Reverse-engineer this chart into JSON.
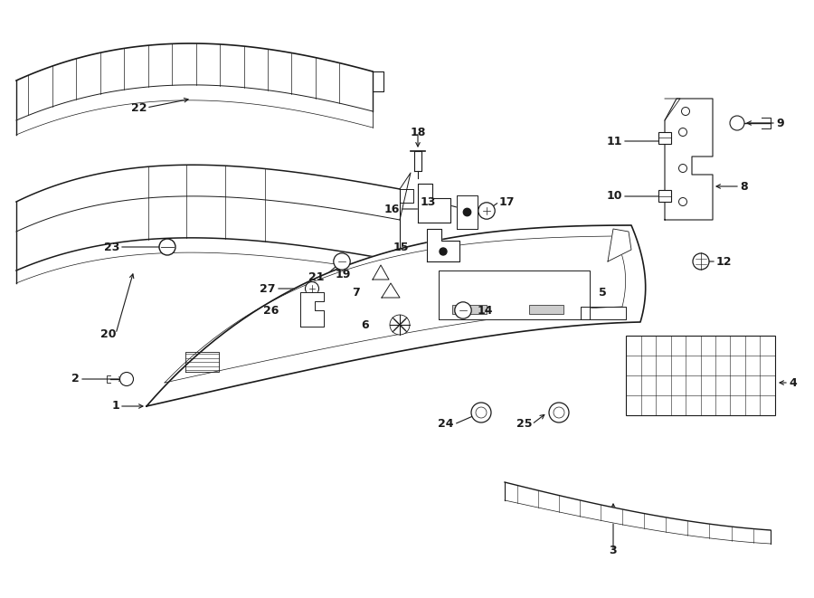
{
  "bg_color": "#ffffff",
  "lc": "#1a1a1a",
  "fig_w": 9.0,
  "fig_h": 6.61,
  "dpi": 100,
  "labels": {
    "1": [
      1.52,
      2.12,
      "left",
      0.0,
      -0.18
    ],
    "2": [
      1.05,
      2.42,
      "left",
      0.12,
      0.0
    ],
    "3": [
      6.78,
      0.52,
      "center",
      0.0,
      -0.18
    ],
    "4": [
      8.62,
      2.28,
      "left",
      0.14,
      0.0
    ],
    "5": [
      6.42,
      3.32,
      "left",
      0.12,
      0.0
    ],
    "6": [
      4.32,
      3.1,
      "right",
      -0.12,
      0.0
    ],
    "7": [
      4.18,
      3.42,
      "right",
      -0.12,
      0.0
    ],
    "8": [
      8.08,
      4.52,
      "left",
      0.14,
      0.0
    ],
    "9": [
      8.48,
      5.25,
      "left",
      0.14,
      0.0
    ],
    "10": [
      7.05,
      4.48,
      "left",
      0.14,
      0.0
    ],
    "11": [
      7.05,
      5.08,
      "left",
      0.14,
      0.0
    ],
    "12": [
      7.85,
      3.72,
      "left",
      0.14,
      0.0
    ],
    "13": [
      5.02,
      4.42,
      "right",
      -0.12,
      0.0
    ],
    "14": [
      5.1,
      3.18,
      "left",
      0.12,
      0.0
    ],
    "15": [
      4.72,
      3.92,
      "right",
      -0.12,
      0.0
    ],
    "16": [
      4.62,
      4.38,
      "right",
      -0.12,
      0.0
    ],
    "17": [
      5.38,
      4.38,
      "left",
      0.12,
      0.0
    ],
    "18": [
      4.58,
      5.05,
      "center",
      0.0,
      0.18
    ],
    "19": [
      4.05,
      3.62,
      "right",
      -0.12,
      0.0
    ],
    "20": [
      1.48,
      2.92,
      "center",
      0.0,
      -0.18
    ],
    "21": [
      3.72,
      3.68,
      "center",
      0.0,
      -0.18
    ],
    "22": [
      1.78,
      5.38,
      "right",
      -0.12,
      0.0
    ],
    "23": [
      1.58,
      3.85,
      "right",
      -0.12,
      0.0
    ],
    "24": [
      5.18,
      1.95,
      "center",
      0.0,
      -0.18
    ],
    "25": [
      6.12,
      1.98,
      "right",
      -0.12,
      0.0
    ],
    "26": [
      3.28,
      3.12,
      "right",
      -0.12,
      0.0
    ],
    "27": [
      3.28,
      3.42,
      "right",
      -0.12,
      0.0
    ]
  }
}
